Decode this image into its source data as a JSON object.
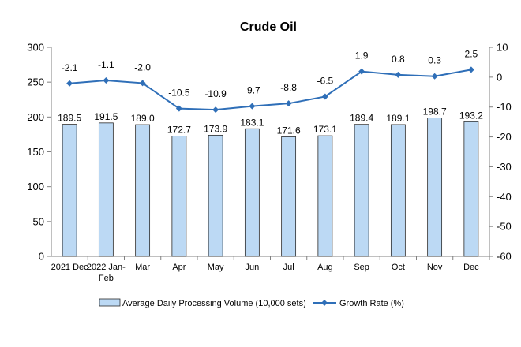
{
  "chart_data": {
    "type": "bar",
    "title": "Crude Oil",
    "categories": [
      "2021 Dec",
      "2022 Jan-Feb",
      "Mar",
      "Apr",
      "May",
      "Jun",
      "Jul",
      "Aug",
      "Sep",
      "Oct",
      "Nov",
      "Dec"
    ],
    "series": [
      {
        "name": "Average Daily Processing Volume (10,000 sets)",
        "type": "bar",
        "axis": "left",
        "values": [
          189.5,
          191.5,
          189.0,
          172.7,
          173.9,
          183.1,
          171.6,
          173.1,
          189.4,
          189.1,
          198.7,
          193.2
        ],
        "color": "#bcd9f4"
      },
      {
        "name": "Growth Rate (%)",
        "type": "line",
        "axis": "right",
        "values": [
          -2.1,
          -1.1,
          -2.0,
          -10.5,
          -10.9,
          -9.7,
          -8.8,
          -6.5,
          1.9,
          0.8,
          0.3,
          2.5
        ],
        "color": "#2f6fb8"
      }
    ],
    "y_left": {
      "min": 0,
      "max": 300,
      "ticks": [
        0,
        50,
        100,
        150,
        200,
        250,
        300
      ]
    },
    "y_right": {
      "min": -60,
      "max": 10,
      "ticks": [
        -60,
        -50,
        -40,
        -30,
        -20,
        -10,
        0,
        10
      ]
    },
    "legend_position": "bottom",
    "grid": false
  }
}
